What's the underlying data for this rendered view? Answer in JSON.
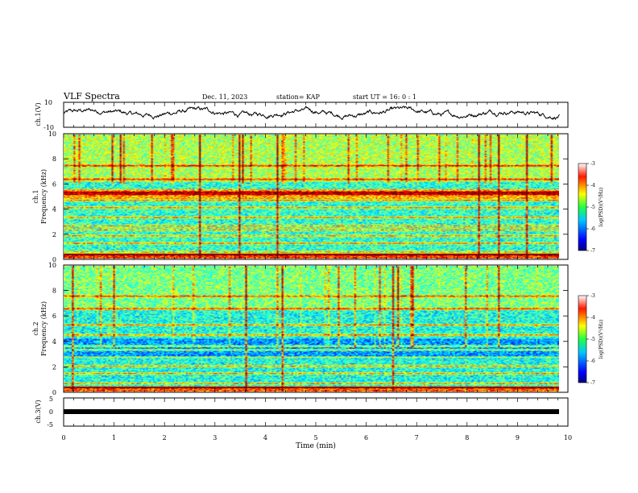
{
  "header": {
    "title": "VLF Spectra",
    "date": "Dec. 11, 2023",
    "station": "station= KAP",
    "start": "start  UT  =   16: 0  : 1"
  },
  "chart_data": [
    {
      "type": "line",
      "panel": "ch1-waveform",
      "ylabel": "ch.1(V)",
      "ylim": [
        -10,
        10
      ],
      "yticks": [
        "10",
        "-10"
      ],
      "xlim": [
        0,
        10
      ],
      "x_end": 9.83,
      "trace_color": "#000000",
      "trace_mean": 1.5,
      "trace_amplitude": 4.5
    },
    {
      "type": "heatmap",
      "panel": "ch1-spectrogram",
      "ylabel": "ch.1\nFrequency  (kHz)",
      "xlim": [
        0,
        10
      ],
      "x_end": 9.83,
      "ylim": [
        0,
        10
      ],
      "yticks": [
        "0",
        "2",
        "4",
        "6",
        "8",
        "10"
      ],
      "colorbar": {
        "label": "log(PSD)(V²/Hz)",
        "range": [
          -7,
          -3
        ],
        "ticks": [
          "-3",
          "-4",
          "-5",
          "-6",
          "-7"
        ]
      },
      "bands_khz": [
        0.3,
        0.5,
        1.2,
        1.8,
        2.3,
        2.6,
        3.3,
        4.1,
        4.7,
        5.2,
        5.35,
        6.4,
        7.5
      ],
      "spikes_upper_khz": [
        6.2,
        10
      ]
    },
    {
      "type": "heatmap",
      "panel": "ch2-spectrogram",
      "ylabel": "ch.2\nFrequency  (kHz)",
      "xlim": [
        0,
        10
      ],
      "x_end": 9.83,
      "ylim": [
        0,
        10
      ],
      "yticks": [
        "0",
        "2",
        "4",
        "6",
        "8",
        "10"
      ],
      "colorbar": {
        "label": "log(PSD)(V²/Hz)",
        "range": [
          -7,
          -3
        ],
        "ticks": [
          "-3",
          "-4",
          "-5",
          "-6",
          "-7"
        ]
      },
      "bands_khz": [
        0.3,
        0.6,
        1.4,
        2.0,
        2.7,
        3.3,
        3.6,
        4.5,
        5.3,
        6.6,
        7.6
      ]
    },
    {
      "type": "line",
      "panel": "ch3-signal",
      "ylabel": "ch.3(V)",
      "ylim": [
        -5,
        5
      ],
      "yticks": [
        "5",
        "0",
        "-5"
      ],
      "xlim": [
        0,
        10
      ],
      "x_end": 9.83,
      "level": 0,
      "trace_color": "#000000"
    }
  ],
  "xaxis": {
    "label": "Time  (min)",
    "ticks": [
      "0",
      "1",
      "2",
      "3",
      "4",
      "5",
      "6",
      "7",
      "8",
      "9",
      "10"
    ]
  }
}
